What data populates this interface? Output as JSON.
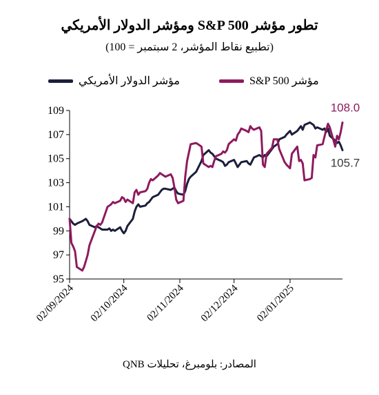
{
  "colors": {
    "dxy": "#1b1f3b",
    "sp500": "#8e1a5e",
    "axis": "#000000",
    "label_dxy": "#3a3a3a"
  },
  "legend": {
    "sp500_label": "مؤشر S&P 500",
    "dxy_label": "مؤشر الدولار الأمريكي"
  },
  "source": "المصادر: بلومبرغ، تحليلات QNB",
  "chart_data": {
    "type": "line",
    "title": "تطور مؤشر S&P 500 ومؤشر الدولار الأمريكي",
    "subtitle": "(تطبيع نقاط المؤشر، 2 سبتمبر = 100)",
    "xlabel": "",
    "ylabel": "",
    "ylim": [
      95,
      109
    ],
    "yticks": [
      95,
      97,
      99,
      101,
      103,
      105,
      107,
      109
    ],
    "xlim": [
      "2024-09-02",
      "2025-01-31"
    ],
    "xticks": [
      "2024-09-02",
      "2024-10-02",
      "2024-11-02",
      "2024-12-02",
      "2025-01-02"
    ],
    "xtick_labels": [
      "02/09/2024",
      "02/10/2024",
      "02/11/2024",
      "02/12/2024",
      "02/01/2025"
    ],
    "end_labels": {
      "sp500": "108.0",
      "dxy": "105.7"
    },
    "grid": false,
    "legend_position": "top",
    "series": [
      {
        "name": "مؤشر الدولار الأمريكي",
        "key": "dxy",
        "points": [
          [
            "2024-09-02",
            100.0
          ],
          [
            "2024-09-03",
            99.8
          ],
          [
            "2024-09-04",
            99.6
          ],
          [
            "2024-09-05",
            99.5
          ],
          [
            "2024-09-06",
            99.6
          ],
          [
            "2024-09-09",
            99.8
          ],
          [
            "2024-09-10",
            99.9
          ],
          [
            "2024-09-11",
            100.0
          ],
          [
            "2024-09-12",
            99.8
          ],
          [
            "2024-09-13",
            99.5
          ],
          [
            "2024-09-16",
            99.3
          ],
          [
            "2024-09-17",
            99.4
          ],
          [
            "2024-09-18",
            99.3
          ],
          [
            "2024-09-19",
            99.2
          ],
          [
            "2024-09-20",
            99.1
          ],
          [
            "2024-09-23",
            99.1
          ],
          [
            "2024-09-24",
            99.2
          ],
          [
            "2024-09-25",
            99.0
          ],
          [
            "2024-09-26",
            99.1
          ],
          [
            "2024-09-27",
            99.0
          ],
          [
            "2024-09-30",
            99.3
          ],
          [
            "2024-10-01",
            99.0
          ],
          [
            "2024-10-02",
            98.8
          ],
          [
            "2024-10-03",
            99.0
          ],
          [
            "2024-10-04",
            99.4
          ],
          [
            "2024-10-07",
            100.0
          ],
          [
            "2024-10-08",
            100.6
          ],
          [
            "2024-10-09",
            101.0
          ],
          [
            "2024-10-10",
            101.2
          ],
          [
            "2024-10-11",
            101.0
          ],
          [
            "2024-10-14",
            101.1
          ],
          [
            "2024-10-15",
            101.3
          ],
          [
            "2024-10-16",
            101.4
          ],
          [
            "2024-10-17",
            101.6
          ],
          [
            "2024-10-18",
            101.8
          ],
          [
            "2024-10-21",
            102.0
          ],
          [
            "2024-10-22",
            102.2
          ],
          [
            "2024-10-23",
            102.4
          ],
          [
            "2024-10-24",
            102.5
          ],
          [
            "2024-10-25",
            102.5
          ],
          [
            "2024-10-28",
            102.4
          ],
          [
            "2024-10-29",
            102.5
          ],
          [
            "2024-10-30",
            102.6
          ],
          [
            "2024-10-31",
            102.3
          ],
          [
            "2024-11-01",
            102.1
          ],
          [
            "2024-11-04",
            102.0
          ],
          [
            "2024-11-05",
            102.3
          ],
          [
            "2024-11-06",
            102.9
          ],
          [
            "2024-11-07",
            103.3
          ],
          [
            "2024-11-08",
            103.5
          ],
          [
            "2024-11-11",
            103.9
          ],
          [
            "2024-11-12",
            104.2
          ],
          [
            "2024-11-13",
            104.5
          ],
          [
            "2024-11-14",
            104.8
          ],
          [
            "2024-11-15",
            105.3
          ],
          [
            "2024-11-18",
            105.7
          ],
          [
            "2024-11-19",
            105.5
          ],
          [
            "2024-11-20",
            105.4
          ],
          [
            "2024-11-21",
            105.2
          ],
          [
            "2024-11-22",
            105.0
          ],
          [
            "2024-11-25",
            104.8
          ],
          [
            "2024-11-26",
            104.7
          ],
          [
            "2024-11-27",
            104.4
          ],
          [
            "2024-11-28",
            104.5
          ],
          [
            "2024-11-29",
            104.7
          ],
          [
            "2024-12-02",
            104.9
          ],
          [
            "2024-12-03",
            104.6
          ],
          [
            "2024-12-04",
            104.3
          ],
          [
            "2024-12-05",
            104.5
          ],
          [
            "2024-12-06",
            104.7
          ],
          [
            "2024-12-09",
            104.8
          ],
          [
            "2024-12-10",
            104.6
          ],
          [
            "2024-12-11",
            104.5
          ],
          [
            "2024-12-12",
            104.8
          ],
          [
            "2024-12-13",
            105.1
          ],
          [
            "2024-12-16",
            105.3
          ],
          [
            "2024-12-17",
            105.2
          ],
          [
            "2024-12-18",
            105.1
          ],
          [
            "2024-12-19",
            105.3
          ],
          [
            "2024-12-20",
            105.2
          ],
          [
            "2024-12-23",
            105.8
          ],
          [
            "2024-12-24",
            106.0
          ],
          [
            "2024-12-26",
            106.2
          ],
          [
            "2024-12-27",
            106.6
          ],
          [
            "2024-12-30",
            106.8
          ],
          [
            "2024-12-31",
            107.0
          ],
          [
            "2025-01-02",
            107.3
          ],
          [
            "2025-01-03",
            107.0
          ],
          [
            "2025-01-06",
            107.3
          ],
          [
            "2025-01-07",
            107.5
          ],
          [
            "2025-01-08",
            107.7
          ],
          [
            "2025-01-09",
            107.4
          ],
          [
            "2025-01-10",
            107.8
          ],
          [
            "2025-01-13",
            108.0
          ],
          [
            "2025-01-14",
            107.9
          ],
          [
            "2025-01-15",
            107.8
          ],
          [
            "2025-01-16",
            107.5
          ],
          [
            "2025-01-17",
            107.6
          ],
          [
            "2025-01-20",
            107.4
          ],
          [
            "2025-01-21",
            107.5
          ],
          [
            "2025-01-22",
            107.2
          ],
          [
            "2025-01-23",
            107.5
          ],
          [
            "2025-01-24",
            106.9
          ],
          [
            "2025-01-27",
            106.5
          ],
          [
            "2025-01-28",
            106.3
          ],
          [
            "2025-01-29",
            106.4
          ],
          [
            "2025-01-30",
            106.1
          ],
          [
            "2025-01-31",
            105.7
          ]
        ]
      },
      {
        "name": "مؤشر S&P 500",
        "key": "sp500",
        "points": [
          [
            "2024-09-02",
            100.0
          ],
          [
            "2024-09-03",
            98.0
          ],
          [
            "2024-09-04",
            97.7
          ],
          [
            "2024-09-05",
            97.3
          ],
          [
            "2024-09-06",
            96.0
          ],
          [
            "2024-09-09",
            95.7
          ],
          [
            "2024-09-10",
            96.0
          ],
          [
            "2024-09-11",
            96.5
          ],
          [
            "2024-09-12",
            97.0
          ],
          [
            "2024-09-13",
            97.8
          ],
          [
            "2024-09-16",
            99.0
          ],
          [
            "2024-09-17",
            99.4
          ],
          [
            "2024-09-18",
            99.6
          ],
          [
            "2024-09-19",
            99.5
          ],
          [
            "2024-09-20",
            99.7
          ],
          [
            "2024-09-23",
            101.0
          ],
          [
            "2024-09-24",
            101.1
          ],
          [
            "2024-09-25",
            101.2
          ],
          [
            "2024-09-26",
            101.4
          ],
          [
            "2024-09-27",
            101.3
          ],
          [
            "2024-09-30",
            101.5
          ],
          [
            "2024-10-01",
            101.8
          ],
          [
            "2024-10-02",
            101.7
          ],
          [
            "2024-10-03",
            101.4
          ],
          [
            "2024-10-04",
            101.6
          ],
          [
            "2024-10-07",
            101.3
          ],
          [
            "2024-10-08",
            102.2
          ],
          [
            "2024-10-09",
            102.4
          ],
          [
            "2024-10-10",
            102.0
          ],
          [
            "2024-10-11",
            102.2
          ],
          [
            "2024-10-14",
            102.3
          ],
          [
            "2024-10-15",
            102.5
          ],
          [
            "2024-10-16",
            103.0
          ],
          [
            "2024-10-17",
            103.3
          ],
          [
            "2024-10-18",
            103.2
          ],
          [
            "2024-10-21",
            103.6
          ],
          [
            "2024-10-22",
            103.8
          ],
          [
            "2024-10-23",
            103.7
          ],
          [
            "2024-10-24",
            103.6
          ],
          [
            "2024-10-25",
            103.5
          ],
          [
            "2024-10-28",
            103.7
          ],
          [
            "2024-10-29",
            103.4
          ],
          [
            "2024-10-30",
            102.6
          ],
          [
            "2024-10-31",
            101.6
          ],
          [
            "2024-11-01",
            101.3
          ],
          [
            "2024-11-04",
            101.5
          ],
          [
            "2024-11-05",
            103.5
          ],
          [
            "2024-11-06",
            104.8
          ],
          [
            "2024-11-07",
            105.5
          ],
          [
            "2024-11-08",
            106.2
          ],
          [
            "2024-11-11",
            106.3
          ],
          [
            "2024-11-12",
            106.2
          ],
          [
            "2024-11-13",
            106.1
          ],
          [
            "2024-11-14",
            106.0
          ],
          [
            "2024-11-15",
            104.6
          ],
          [
            "2024-11-18",
            104.3
          ],
          [
            "2024-11-19",
            104.4
          ],
          [
            "2024-11-20",
            104.3
          ],
          [
            "2024-11-21",
            104.8
          ],
          [
            "2024-11-22",
            105.2
          ],
          [
            "2024-11-25",
            105.4
          ],
          [
            "2024-11-26",
            105.6
          ],
          [
            "2024-11-27",
            105.5
          ],
          [
            "2024-11-28",
            105.7
          ],
          [
            "2024-11-29",
            106.2
          ],
          [
            "2024-12-02",
            106.6
          ],
          [
            "2024-12-03",
            106.5
          ],
          [
            "2024-12-04",
            107.0
          ],
          [
            "2024-12-05",
            107.2
          ],
          [
            "2024-12-06",
            107.5
          ],
          [
            "2024-12-09",
            107.3
          ],
          [
            "2024-12-10",
            107.2
          ],
          [
            "2024-12-11",
            107.7
          ],
          [
            "2024-12-12",
            107.5
          ],
          [
            "2024-12-13",
            107.4
          ],
          [
            "2024-12-16",
            107.6
          ],
          [
            "2024-12-17",
            107.3
          ],
          [
            "2024-12-18",
            104.5
          ],
          [
            "2024-12-19",
            104.3
          ],
          [
            "2024-12-20",
            105.4
          ],
          [
            "2024-12-23",
            105.9
          ],
          [
            "2024-12-24",
            106.6
          ],
          [
            "2024-12-26",
            106.6
          ],
          [
            "2024-12-27",
            105.8
          ],
          [
            "2024-12-30",
            104.7
          ],
          [
            "2024-12-31",
            104.5
          ],
          [
            "2025-01-02",
            104.2
          ],
          [
            "2025-01-03",
            105.4
          ],
          [
            "2025-01-06",
            106.0
          ],
          [
            "2025-01-07",
            104.8
          ],
          [
            "2025-01-08",
            104.9
          ],
          [
            "2025-01-09",
            104.6
          ],
          [
            "2025-01-10",
            103.2
          ],
          [
            "2025-01-13",
            103.3
          ],
          [
            "2025-01-14",
            103.4
          ],
          [
            "2025-01-15",
            105.3
          ],
          [
            "2025-01-16",
            105.1
          ],
          [
            "2025-01-17",
            106.1
          ],
          [
            "2025-01-20",
            106.2
          ],
          [
            "2025-01-21",
            106.8
          ],
          [
            "2025-01-22",
            107.4
          ],
          [
            "2025-01-23",
            107.9
          ],
          [
            "2025-01-24",
            107.6
          ],
          [
            "2025-01-27",
            106.0
          ],
          [
            "2025-01-28",
            106.9
          ],
          [
            "2025-01-29",
            106.6
          ],
          [
            "2025-01-30",
            107.2
          ],
          [
            "2025-01-31",
            108.0
          ]
        ]
      }
    ]
  }
}
